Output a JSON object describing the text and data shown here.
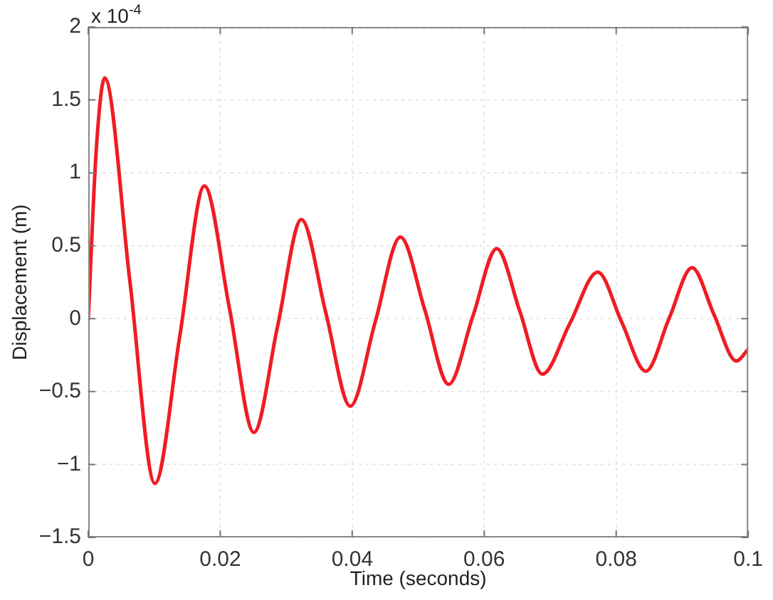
{
  "chart_data": {
    "type": "line",
    "xlabel": "Time (seconds)",
    "ylabel": "Displacement (m)",
    "annotations": [
      "x 10$^{-4}$"
    ],
    "x": [
      0,
      0.0012,
      0.0025,
      0.0063,
      0.0101,
      0.0139,
      0.0176,
      0.0214,
      0.0251,
      0.0287,
      0.0323,
      0.036,
      0.0397,
      0.0435,
      0.0473,
      0.051,
      0.0546,
      0.0583,
      0.0619,
      0.0654,
      0.0688,
      0.073,
      0.0772,
      0.0808,
      0.0845,
      0.088,
      0.0915,
      0.0948,
      0.0982,
      0.1
    ],
    "series": [
      {
        "color": "#f01c24",
        "values": [
          0,
          1.15,
          1.65,
          0.26,
          -1.13,
          -0.11,
          0.91,
          0.07,
          -0.78,
          -0.05,
          0.68,
          0.04,
          -0.6,
          -0.02,
          0.56,
          0.06,
          -0.45,
          0.02,
          0.48,
          0.05,
          -0.38,
          -0.03,
          0.32,
          -0.02,
          -0.36,
          0,
          0.35,
          0.03,
          -0.29,
          -0.21
        ]
      }
    ],
    "xlim": [
      0,
      0.1
    ],
    "xticks": [
      0,
      0.02,
      0.04,
      0.06,
      0.08,
      0.1
    ],
    "ylim": [
      -1.5,
      2
    ],
    "yticks": [
      -1.5,
      -1,
      -0.5,
      0,
      0.5,
      1,
      1.5,
      2
    ],
    "grid": true
  }
}
